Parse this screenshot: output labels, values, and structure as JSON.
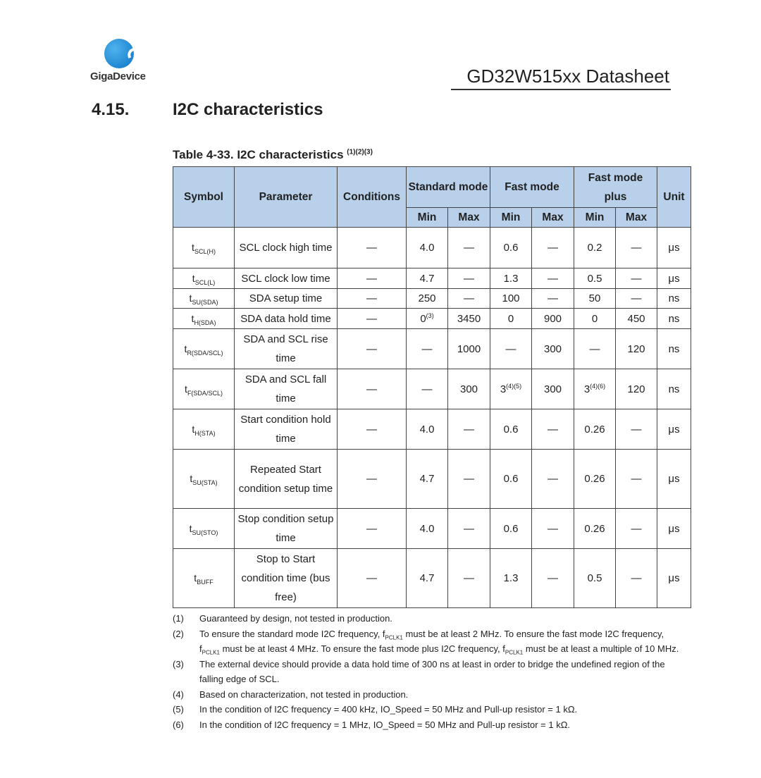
{
  "header": {
    "logo_text": "GigaDevice",
    "doc_title": "GD32W515xx Datasheet"
  },
  "section": {
    "number": "4.15.",
    "title": "I2C characteristics"
  },
  "table": {
    "caption": "Table 4-33. I2C characteristics",
    "caption_refs": "(1)(2)(3)",
    "headers": {
      "symbol": "Symbol",
      "parameter": "Parameter",
      "conditions": "Conditions",
      "standard": "Standard mode",
      "fast": "Fast mode",
      "fastplus": "Fast mode plus",
      "unit": "Unit",
      "min": "Min",
      "max": "Max"
    },
    "rows": [
      {
        "sym": "t",
        "sub": "SCL(H)",
        "param": "SCL clock high time",
        "cond": "—",
        "cells": [
          {
            "v": "4.0"
          },
          {
            "v": "—"
          },
          {
            "v": "0.6"
          },
          {
            "v": "—"
          },
          {
            "v": "0.2"
          },
          {
            "v": "—"
          }
        ],
        "unit": "μs"
      },
      {
        "sym": "t",
        "sub": "SCL(L)",
        "param": "SCL clock low time",
        "cond": "—",
        "cells": [
          {
            "v": "4.7"
          },
          {
            "v": "—"
          },
          {
            "v": "1.3"
          },
          {
            "v": "—"
          },
          {
            "v": "0.5"
          },
          {
            "v": "—"
          }
        ],
        "unit": "μs"
      },
      {
        "sym": "t",
        "sub": "SU(SDA)",
        "param": "SDA setup time",
        "cond": "—",
        "cells": [
          {
            "v": "250"
          },
          {
            "v": "—"
          },
          {
            "v": "100"
          },
          {
            "v": "—"
          },
          {
            "v": "50"
          },
          {
            "v": "—"
          }
        ],
        "unit": "ns"
      },
      {
        "sym": "t",
        "sub": "H(SDA)",
        "param": "SDA data hold time",
        "cond": "—",
        "cells": [
          {
            "v": "0",
            "sup": "(3)"
          },
          {
            "v": "3450"
          },
          {
            "v": "0"
          },
          {
            "v": "900"
          },
          {
            "v": "0"
          },
          {
            "v": "450"
          }
        ],
        "unit": "ns"
      },
      {
        "sym": "t",
        "sub": "R(SDA/SCL)",
        "param": "SDA and SCL rise time",
        "cond": "—",
        "cells": [
          {
            "v": "—"
          },
          {
            "v": "1000"
          },
          {
            "v": "—"
          },
          {
            "v": "300"
          },
          {
            "v": "—"
          },
          {
            "v": "120"
          }
        ],
        "unit": "ns"
      },
      {
        "sym": "t",
        "sub": "F(SDA/SCL)",
        "param": "SDA and SCL fall time",
        "cond": "—",
        "cells": [
          {
            "v": "—"
          },
          {
            "v": "300"
          },
          {
            "v": "3",
            "sup": "(4)(5)"
          },
          {
            "v": "300"
          },
          {
            "v": "3",
            "sup": "(4)(6)"
          },
          {
            "v": "120"
          }
        ],
        "unit": "ns"
      },
      {
        "sym": "t",
        "sub": "H(STA)",
        "param": "Start condition hold time",
        "cond": "—",
        "cells": [
          {
            "v": "4.0"
          },
          {
            "v": "—"
          },
          {
            "v": "0.6"
          },
          {
            "v": "—"
          },
          {
            "v": "0.26"
          },
          {
            "v": "—"
          }
        ],
        "unit": "μs"
      },
      {
        "sym": "t",
        "sub": "SU(STA)",
        "param": "Repeated Start condition setup time",
        "cond": "—",
        "cells": [
          {
            "v": "4.7"
          },
          {
            "v": "—"
          },
          {
            "v": "0.6"
          },
          {
            "v": "—"
          },
          {
            "v": "0.26"
          },
          {
            "v": "—"
          }
        ],
        "unit": "μs"
      },
      {
        "sym": "t",
        "sub": "SU(STO)",
        "param": "Stop condition setup time",
        "cond": "—",
        "cells": [
          {
            "v": "4.0"
          },
          {
            "v": "—"
          },
          {
            "v": "0.6"
          },
          {
            "v": "—"
          },
          {
            "v": "0.26"
          },
          {
            "v": "—"
          }
        ],
        "unit": "μs"
      },
      {
        "sym": "t",
        "sub": "BUFF",
        "param": "Stop to Start condition time (bus free)",
        "cond": "—",
        "cells": [
          {
            "v": "4.7"
          },
          {
            "v": "—"
          },
          {
            "v": "1.3"
          },
          {
            "v": "—"
          },
          {
            "v": "0.5"
          },
          {
            "v": "—"
          }
        ],
        "unit": "μs"
      }
    ]
  },
  "footnotes": [
    {
      "n": "(1)",
      "parts": [
        {
          "t": "Guaranteed by design, not tested in production."
        }
      ]
    },
    {
      "n": "(2)",
      "parts": [
        {
          "t": "To ensure the standard mode I2C frequency, f"
        },
        {
          "sub": "PCLK1"
        },
        {
          "t": " must be at least 2 MHz. To ensure the fast mode I2C frequency, f"
        },
        {
          "sub": "PCLK1"
        },
        {
          "t": " must be at least 4 MHz. To ensure the fast mode plus I2C frequency, f"
        },
        {
          "sub": "PCLK1"
        },
        {
          "t": " must be at least a multiple of 10 MHz."
        }
      ]
    },
    {
      "n": "(3)",
      "parts": [
        {
          "t": "The external device should provide a data hold time of 300 ns at least in order to bridge the undefined region of the falling edge of SCL."
        }
      ]
    },
    {
      "n": "(4)",
      "parts": [
        {
          "t": "Based on characterization, not tested in production."
        }
      ]
    },
    {
      "n": "(5)",
      "parts": [
        {
          "t": "In the condition of I2C frequency = 400 kHz, IO_Speed = 50 MHz and Pull-up resistor = 1 kΩ."
        }
      ]
    },
    {
      "n": "(6)",
      "parts": [
        {
          "t": "In the condition of I2C frequency = 1 MHz, IO_Speed = 50 MHz and Pull-up resistor = 1 kΩ."
        }
      ]
    }
  ]
}
